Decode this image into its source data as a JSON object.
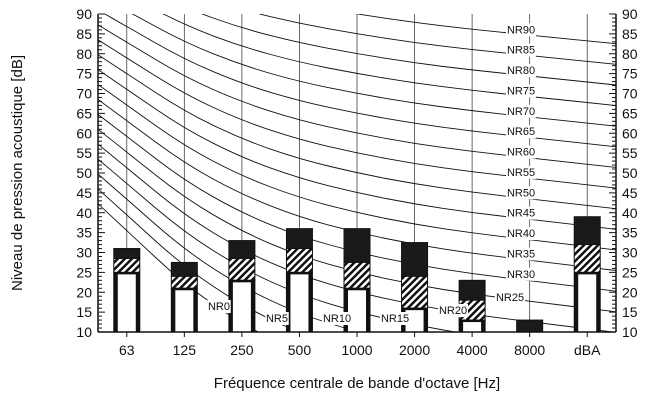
{
  "chart_data": {
    "type": "bar",
    "title": "",
    "xlabel": "Fréquence centrale de bande d'octave [Hz]",
    "ylabel": "Niveau de pression acoustique [dB]",
    "ylim": [
      10,
      90
    ],
    "y_ticks": [
      10,
      15,
      20,
      25,
      30,
      35,
      40,
      45,
      50,
      55,
      60,
      65,
      70,
      75,
      80,
      85,
      90
    ],
    "categories": [
      "63",
      "125",
      "250",
      "500",
      "1000",
      "2000",
      "4000",
      "8000",
      "dBA"
    ],
    "grid": "vertical",
    "series": [
      {
        "values": [
          31,
          27.5,
          33,
          36,
          36,
          32.5,
          23,
          13,
          39
        ]
      },
      {
        "values": [
          28.5,
          24,
          28.5,
          31,
          27.5,
          24,
          18,
          null,
          32
        ]
      },
      {
        "values": [
          25,
          21,
          23,
          25,
          21,
          16,
          13,
          null,
          25
        ]
      }
    ],
    "nr_curves": [
      {
        "label": "NR0",
        "nr": 0
      },
      {
        "label": "NR5",
        "nr": 5
      },
      {
        "label": "NR10",
        "nr": 10
      },
      {
        "label": "NR15",
        "nr": 15
      },
      {
        "label": "NR20",
        "nr": 20
      },
      {
        "label": "NR25",
        "nr": 25
      },
      {
        "label": "NR30",
        "nr": 30
      },
      {
        "label": "NR35",
        "nr": 35
      },
      {
        "label": "NR40",
        "nr": 40
      },
      {
        "label": "NR45",
        "nr": 45
      },
      {
        "label": "NR50",
        "nr": 50
      },
      {
        "label": "NR55",
        "nr": 55
      },
      {
        "label": "NR60",
        "nr": 60
      },
      {
        "label": "NR65",
        "nr": 65
      },
      {
        "label": "NR70",
        "nr": 70
      },
      {
        "label": "NR75",
        "nr": 75
      },
      {
        "label": "NR80",
        "nr": 80
      },
      {
        "label": "NR85",
        "nr": 85
      },
      {
        "label": "NR90",
        "nr": 90
      }
    ],
    "colors": {
      "upper": "#1a1a1a",
      "middle": "hatched",
      "lower": "#ffffff",
      "curve": "#111111"
    }
  }
}
